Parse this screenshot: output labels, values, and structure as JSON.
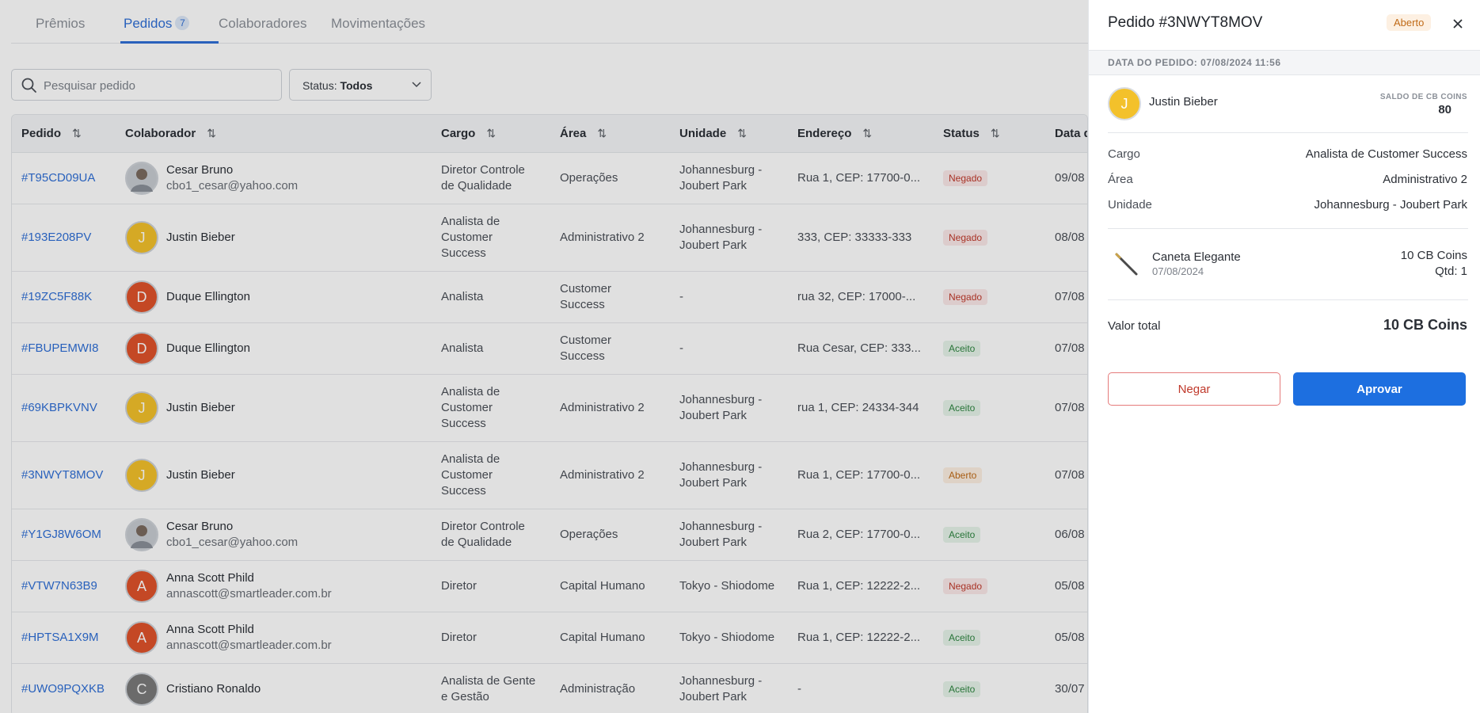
{
  "tabs": [
    {
      "label": "Prêmios"
    },
    {
      "label": "Pedidos",
      "count": "7"
    },
    {
      "label": "Colaboradores"
    },
    {
      "label": "Movimentações"
    }
  ],
  "search": {
    "placeholder": "Pesquisar pedido"
  },
  "status_filter": {
    "label": "Status:",
    "value": "Todos"
  },
  "table": {
    "headers": [
      "Pedido",
      "Colaborador",
      "Cargo",
      "Área",
      "Unidade",
      "Endereço",
      "Status",
      "Data d"
    ],
    "rows": [
      {
        "id": "#T95CD09UA",
        "name": "Cesar Bruno",
        "email": "cbo1_cesar@yahoo.com",
        "cargo": "Diretor Controle de Qualidade",
        "area": "Operações",
        "unidade": "Johannesburg - Joubert Park",
        "endereco": "Rua 1, CEP: 17700-0...",
        "status": "Negado",
        "data": "09/08"
      },
      {
        "id": "#193E208PV",
        "name": "Justin Bieber",
        "email": "",
        "initial": "J",
        "cargo": "Analista de Customer Success",
        "area": "Administrativo 2",
        "unidade": "Johannesburg - Joubert Park",
        "endereco": "333, CEP: 33333-333",
        "status": "Negado",
        "data": "08/08"
      },
      {
        "id": "#19ZC5F88K",
        "name": "Duque Ellington",
        "email": "",
        "initial": "D",
        "cargo": "Analista",
        "area": "Customer Success",
        "unidade": "-",
        "endereco": "rua 32, CEP: 17000-...",
        "status": "Negado",
        "data": "07/08"
      },
      {
        "id": "#FBUPEMWI8",
        "name": "Duque Ellington",
        "email": "",
        "initial": "D",
        "cargo": "Analista",
        "area": "Customer Success",
        "unidade": "-",
        "endereco": "Rua Cesar, CEP: 333...",
        "status": "Aceito",
        "data": "07/08"
      },
      {
        "id": "#69KBPKVNV",
        "name": "Justin Bieber",
        "email": "",
        "initial": "J",
        "cargo": "Analista de Customer Success",
        "area": "Administrativo 2",
        "unidade": "Johannesburg - Joubert Park",
        "endereco": "rua 1, CEP: 24334-344",
        "status": "Aceito",
        "data": "07/08"
      },
      {
        "id": "#3NWYT8MOV",
        "name": "Justin Bieber",
        "email": "",
        "initial": "J",
        "cargo": "Analista de Customer Success",
        "area": "Administrativo 2",
        "unidade": "Johannesburg - Joubert Park",
        "endereco": "Rua 1, CEP: 17700-0...",
        "status": "Aberto",
        "data": "07/08"
      },
      {
        "id": "#Y1GJ8W6OM",
        "name": "Cesar Bruno",
        "email": "cbo1_cesar@yahoo.com",
        "cargo": "Diretor Controle de Qualidade",
        "area": "Operações",
        "unidade": "Johannesburg - Joubert Park",
        "endereco": "Rua 2, CEP: 17700-0...",
        "status": "Aceito",
        "data": "06/08"
      },
      {
        "id": "#VTW7N63B9",
        "name": "Anna Scott Phild",
        "email": "annascott@smartleader.com.br",
        "initial": "A",
        "cargo": "Diretor",
        "area": "Capital Humano",
        "unidade": "Tokyo - Shiodome",
        "endereco": "Rua 1, CEP: 12222-2...",
        "status": "Negado",
        "data": "05/08"
      },
      {
        "id": "#HPTSA1X9M",
        "name": "Anna Scott Phild",
        "email": "annascott@smartleader.com.br",
        "initial": "A",
        "cargo": "Diretor",
        "area": "Capital Humano",
        "unidade": "Tokyo - Shiodome",
        "endereco": "Rua 1, CEP: 12222-2...",
        "status": "Aceito",
        "data": "05/08"
      },
      {
        "id": "#UWO9PQXKB",
        "name": "Cristiano Ronaldo",
        "email": "",
        "initial": "C",
        "cargo": "Analista de Gente e Gestão",
        "area": "Administração",
        "unidade": "Johannesburg - Joubert Park",
        "endereco": "-",
        "status": "Aceito",
        "data": "30/07"
      }
    ]
  },
  "panel": {
    "title": "Pedido #3NWYT8MOV",
    "status": "Aberto",
    "date_label": "DATA DO PEDIDO: 07/08/2024 11:56",
    "user": {
      "initial": "J",
      "name": "Justin Bieber"
    },
    "saldo_label": "SALDO DE CB COINS",
    "saldo_value": "80",
    "details": [
      {
        "key": "Cargo",
        "value": "Analista de Customer Success"
      },
      {
        "key": "Área",
        "value": "Administrativo 2"
      },
      {
        "key": "Unidade",
        "value": "Johannesburg - Joubert Park"
      }
    ],
    "product": {
      "name": "Caneta Elegante",
      "date": "07/08/2024",
      "price": "10 CB Coins",
      "qty": "Qtd: 1"
    },
    "total_label": "Valor total",
    "total_value": "10 CB Coins",
    "deny_label": "Negar",
    "approve_label": "Aprovar"
  },
  "colors": {
    "accent": "#1d6fe0",
    "link": "#2f6fd6",
    "yellow_avatar": "#f3c12b",
    "orange_avatar": "#e0522b",
    "gray_avatar": "#7a7a7a"
  }
}
